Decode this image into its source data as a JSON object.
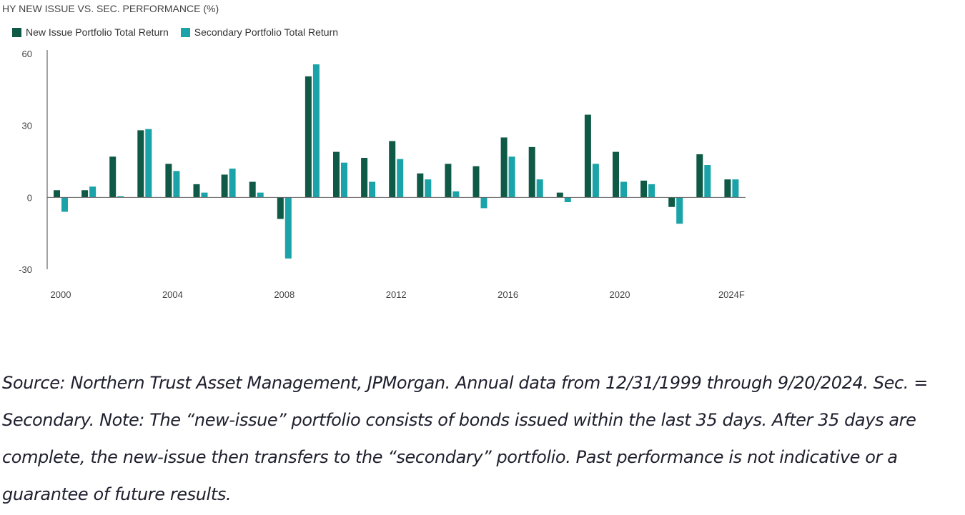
{
  "chart_data": {
    "type": "bar",
    "title": "HY NEW ISSUE VS. SEC. PERFORMANCE (%)",
    "categories": [
      "2000",
      "2001",
      "2002",
      "2003",
      "2004",
      "2005",
      "2006",
      "2007",
      "2008",
      "2009",
      "2010",
      "2011",
      "2012",
      "2013",
      "2014",
      "2015",
      "2016",
      "2017",
      "2018",
      "2019",
      "2020",
      "2021",
      "2022",
      "2023",
      "2024F"
    ],
    "x_tick_labels": [
      "2000",
      "2004",
      "2008",
      "2012",
      "2016",
      "2020",
      "2024F"
    ],
    "x_tick_categories": [
      "2000",
      "2004",
      "2008",
      "2012",
      "2016",
      "2020",
      "2024F"
    ],
    "ylim": [
      -30,
      60
    ],
    "y_ticks": [
      60,
      30,
      0,
      -30
    ],
    "grid": false,
    "legend_position": "top-left",
    "series": [
      {
        "name": "New Issue Portfolio Total Return",
        "color": "#0f5a46",
        "values": [
          3,
          3,
          17,
          28,
          14,
          5.5,
          9.5,
          6.5,
          -9,
          50.5,
          19,
          16.5,
          23.5,
          10,
          14,
          13,
          25,
          21,
          2,
          34.5,
          19,
          7,
          -4,
          18,
          7.5
        ]
      },
      {
        "name": "Secondary Portfolio Total Return",
        "color": "#1aa3a8",
        "values": [
          -6,
          4.5,
          0.5,
          28.5,
          11,
          2,
          12,
          2,
          -25.5,
          55.5,
          14.5,
          6.5,
          16,
          7.5,
          2.5,
          -4.5,
          17,
          7.5,
          -2,
          14,
          6.5,
          5.5,
          -11,
          13.5,
          7.5
        ]
      }
    ]
  },
  "caption": {
    "text": "Source: Northern Trust Asset Management, JPMorgan. Annual data from 12/31/1999 through 9/20/2024. Sec. = Secondary. Note: The “new-issue” portfolio consists of bonds issued within the last 35 days. After 35 days are complete, the new-issue then transfers to the “secondary” portfolio. Past performance is not indicative or a guarantee of future results."
  }
}
